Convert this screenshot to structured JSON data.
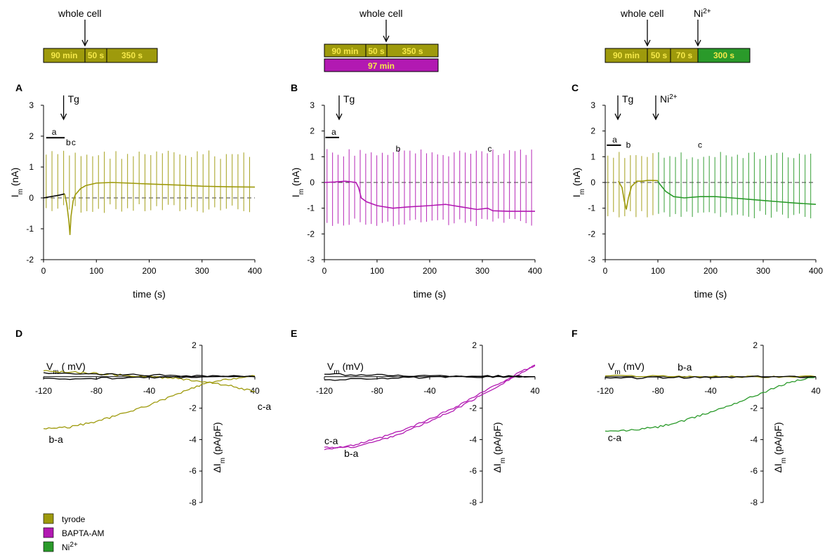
{
  "colors": {
    "tyrode": "#9e9a0c",
    "bapta": "#b219b2",
    "ni": "#2a9a2a",
    "bar_text": "#f5e84a",
    "black": "#000000"
  },
  "legend": [
    {
      "label": "tyrode",
      "color": "#9e9a0c"
    },
    {
      "label": "BAPTA-AM",
      "color": "#b219b2"
    },
    {
      "label": "Ni",
      "sup": "2+",
      "color": "#2a9a2a"
    }
  ],
  "protocols": [
    {
      "whole_cell": "whole cell",
      "segments": [
        {
          "label": "90 min",
          "color": "tyrode"
        },
        {
          "label": "50 s",
          "color": "tyrode"
        },
        {
          "label": "350 s",
          "color": "tyrode"
        }
      ],
      "extra_bar": null,
      "ni_label": null
    },
    {
      "whole_cell": "whole cell",
      "segments": [
        {
          "label": "90 min",
          "color": "tyrode"
        },
        {
          "label": "50 s",
          "color": "tyrode"
        },
        {
          "label": "350 s",
          "color": "tyrode"
        }
      ],
      "extra_bar": {
        "label": "97 min",
        "color": "bapta"
      },
      "ni_label": null
    },
    {
      "whole_cell": "whole cell",
      "segments": [
        {
          "label": "90 min",
          "color": "tyrode"
        },
        {
          "label": "50 s",
          "color": "tyrode"
        },
        {
          "label": "70 s",
          "color": "tyrode"
        },
        {
          "label": "300 s",
          "color": "ni"
        }
      ],
      "extra_bar": null,
      "ni_label": {
        "base": "Ni",
        "sup": "2+"
      }
    }
  ],
  "chart_data": [
    {
      "panel": "A",
      "type": "line",
      "xlabel": "time (s)",
      "ylabel": "I",
      "ylabel_sub": "m",
      "ylabel_unit": "(nA)",
      "xlim": [
        0,
        400
      ],
      "ylim": [
        -2,
        3
      ],
      "xticks": [
        0,
        100,
        200,
        300,
        400
      ],
      "yticks": [
        -2,
        -1,
        0,
        1,
        2,
        3
      ],
      "arrows": [
        {
          "label": "Tg",
          "x": 38
        }
      ],
      "segment_labels": [
        {
          "label": "a",
          "x": 20,
          "y": 2.05
        },
        {
          "label": "b",
          "x": 47,
          "y": 1.7
        },
        {
          "label": "c",
          "x": 57,
          "y": 1.7
        }
      ],
      "bar_a": {
        "x": [
          5,
          40
        ],
        "y": 1.95
      },
      "series": [
        {
          "color": "black",
          "x": [
            0,
            10,
            20,
            30,
            40
          ],
          "y": [
            0.0,
            0.03,
            0.06,
            0.09,
            0.13
          ]
        },
        {
          "color": "tyrode",
          "x": [
            40,
            44,
            48,
            50,
            52,
            56,
            60,
            70,
            80,
            100,
            130,
            160,
            200,
            250,
            300,
            350,
            400
          ],
          "y": [
            0.13,
            -0.2,
            -0.75,
            -1.2,
            -0.6,
            -0.1,
            0.1,
            0.3,
            0.4,
            0.48,
            0.5,
            0.48,
            0.45,
            0.42,
            0.38,
            0.36,
            0.35
          ]
        }
      ],
      "spikes": {
        "start": 5,
        "step": 11,
        "end": 398,
        "top": 1.55,
        "bottom": -0.5
      }
    },
    {
      "panel": "B",
      "type": "line",
      "xlabel": "time (s)",
      "ylabel": "I",
      "ylabel_sub": "m",
      "ylabel_unit": "(nA)",
      "xlim": [
        0,
        400
      ],
      "ylim": [
        -3,
        3
      ],
      "xticks": [
        0,
        100,
        200,
        300,
        400
      ],
      "yticks": [
        -3,
        -2,
        -1,
        0,
        1,
        2,
        3
      ],
      "arrows": [
        {
          "label": "Tg",
          "x": 28
        }
      ],
      "segment_labels": [
        {
          "label": "a",
          "x": 18,
          "y": 1.85
        },
        {
          "label": "b",
          "x": 140,
          "y": 1.2
        },
        {
          "label": "c",
          "x": 314,
          "y": 1.2
        }
      ],
      "bar_a": {
        "x": [
          2,
          28
        ],
        "y": 1.75
      },
      "series": [
        {
          "color": "bapta",
          "x": [
            0,
            20,
            40,
            60,
            65,
            70,
            80,
            100,
            130,
            160,
            200,
            230,
            260,
            290,
            310,
            320,
            350,
            400
          ],
          "y": [
            0.0,
            0.02,
            0.05,
            0.0,
            -0.2,
            -0.6,
            -0.75,
            -0.9,
            -1.0,
            -0.95,
            -0.9,
            -0.85,
            -0.95,
            -1.05,
            -1.0,
            -1.1,
            -1.12,
            -1.12
          ]
        }
      ],
      "spikes": {
        "start": 5,
        "step": 10.5,
        "end": 398,
        "top": 1.3,
        "bottom": -1.7
      }
    },
    {
      "panel": "C",
      "type": "line",
      "xlabel": "time (s)",
      "ylabel": "I",
      "ylabel_sub": "m",
      "ylabel_unit": "(nA)",
      "xlim": [
        0,
        400
      ],
      "ylim": [
        -3,
        3
      ],
      "xticks": [
        0,
        100,
        200,
        300,
        400
      ],
      "yticks": [
        -3,
        -2,
        -1,
        0,
        1,
        2,
        3
      ],
      "arrows": [
        {
          "label": "Tg",
          "x": 24
        },
        {
          "label": "Ni",
          "sup": "2+",
          "x": 96
        }
      ],
      "segment_labels": [
        {
          "label": "a",
          "x": 18,
          "y": 1.55
        },
        {
          "label": "b",
          "x": 44,
          "y": 1.35
        },
        {
          "label": "c",
          "x": 180,
          "y": 1.35
        }
      ],
      "bar_a": {
        "x": [
          3,
          30
        ],
        "y": 1.45
      },
      "series": [
        {
          "color": "tyrode",
          "x": [
            25,
            32,
            36,
            40,
            44,
            50,
            60,
            70,
            80,
            90,
            100
          ],
          "y": [
            0.05,
            -0.2,
            -0.7,
            -1.05,
            -0.6,
            -0.15,
            0.05,
            0.05,
            0.08,
            0.08,
            0.07
          ]
        },
        {
          "color": "ni",
          "x": [
            100,
            105,
            115,
            130,
            150,
            180,
            210,
            240,
            270,
            300,
            330,
            360,
            400
          ],
          "y": [
            0.05,
            -0.1,
            -0.35,
            -0.55,
            -0.6,
            -0.55,
            -0.55,
            -0.6,
            -0.65,
            -0.7,
            -0.75,
            -0.8,
            -0.85
          ]
        }
      ],
      "spikes": {
        "start": 5,
        "step": 10.7,
        "end": 398,
        "top": 1.2,
        "bottom": -1.4
      }
    },
    {
      "panel": "D",
      "type": "line",
      "xlabel": "V",
      "xlabel_sub": "m",
      "xlabel_text": "( mV)",
      "ylabel": "ΔI",
      "ylabel_sub": "m",
      "ylabel_unit": "(pA/pF)",
      "xlim": [
        -120,
        40
      ],
      "ylim": [
        -8,
        2
      ],
      "xticks": [
        -120,
        -80,
        -40,
        40
      ],
      "yticks": [
        -8,
        -6,
        -4,
        -2,
        2
      ],
      "curve_labels": [
        {
          "label": "b-a",
          "x": -116,
          "y": -4.2
        },
        {
          "label": "c-a",
          "x": 42,
          "y": -2.1
        }
      ],
      "series": [
        {
          "color": "tyrode",
          "name": "b-a",
          "x": [
            -120,
            -100,
            -80,
            -60,
            -40,
            -20,
            0,
            20,
            40
          ],
          "y": [
            -3.3,
            -3.2,
            -2.85,
            -2.35,
            -1.8,
            -1.15,
            -0.5,
            -0.15,
            0.05
          ]
        },
        {
          "color": "tyrode",
          "name": "c-a",
          "x": [
            -120,
            -100,
            -80,
            -60,
            -40,
            -20,
            0,
            20,
            40
          ],
          "y": [
            0.35,
            0.3,
            0.2,
            0.1,
            0.0,
            -0.1,
            -0.3,
            -0.55,
            -0.95
          ]
        },
        {
          "color": "black",
          "x": [
            -120,
            -80,
            -40,
            0,
            40
          ],
          "y": [
            0.2,
            0.15,
            0.1,
            0.05,
            0.0
          ]
        },
        {
          "color": "black",
          "x": [
            -120,
            -80,
            -40,
            0,
            40
          ],
          "y": [
            -0.15,
            -0.1,
            -0.05,
            0.0,
            0.0
          ]
        }
      ]
    },
    {
      "panel": "E",
      "type": "line",
      "xlabel": "V",
      "xlabel_sub": "m",
      "xlabel_text": "(mV)",
      "ylabel": "ΔI",
      "ylabel_sub": "m",
      "ylabel_unit": "(pA/pF)",
      "xlim": [
        -120,
        40
      ],
      "ylim": [
        -8,
        2
      ],
      "xticks": [
        -120,
        -80,
        -40,
        40
      ],
      "yticks": [
        -8,
        -6,
        -4,
        -2,
        2
      ],
      "curve_labels": [
        {
          "label": "c-a",
          "x": -120,
          "y": -4.3
        },
        {
          "label": "b-a",
          "x": -105,
          "y": -5.1
        }
      ],
      "series": [
        {
          "color": "bapta",
          "name": "c-a",
          "x": [
            -120,
            -100,
            -80,
            -60,
            -40,
            -20,
            0,
            20,
            40
          ],
          "y": [
            -4.6,
            -4.4,
            -3.95,
            -3.4,
            -2.7,
            -1.9,
            -1.0,
            -0.1,
            0.75
          ]
        },
        {
          "color": "bapta",
          "name": "b-a",
          "x": [
            -120,
            -100,
            -80,
            -60,
            -40,
            -20,
            0,
            20,
            40
          ],
          "y": [
            -4.5,
            -4.5,
            -4.1,
            -3.55,
            -2.85,
            -2.05,
            -1.15,
            -0.2,
            0.7
          ]
        },
        {
          "color": "black",
          "x": [
            -120,
            -80,
            -40,
            0,
            40
          ],
          "y": [
            0.15,
            0.1,
            0.05,
            0.05,
            0.0
          ]
        },
        {
          "color": "black",
          "x": [
            -120,
            -80,
            -40,
            0,
            40
          ],
          "y": [
            -0.2,
            -0.1,
            -0.05,
            0.0,
            0.0
          ]
        }
      ]
    },
    {
      "panel": "F",
      "type": "line",
      "xlabel": "V",
      "xlabel_sub": "m",
      "xlabel_text": "(mV)",
      "ylabel": "ΔI",
      "ylabel_sub": "m",
      "ylabel_unit": "(pA/pF)",
      "xlim": [
        -120,
        40
      ],
      "ylim": [
        -8,
        2
      ],
      "xticks": [
        -120,
        -80,
        -40,
        40
      ],
      "yticks": [
        -8,
        -6,
        -4,
        -2,
        2
      ],
      "curve_labels": [
        {
          "label": "b-a",
          "x": -65,
          "y": 0.4
        },
        {
          "label": "c-a",
          "x": -118,
          "y": -4.1
        }
      ],
      "series": [
        {
          "color": "ni",
          "name": "c-a",
          "x": [
            -120,
            -100,
            -80,
            -60,
            -40,
            -20,
            0,
            20,
            40
          ],
          "y": [
            -3.5,
            -3.4,
            -3.2,
            -2.8,
            -2.25,
            -1.65,
            -1.0,
            -0.35,
            0.0
          ]
        },
        {
          "color": "tyrode",
          "name": "b-a",
          "x": [
            -120,
            -80,
            -40,
            0,
            40
          ],
          "y": [
            0.05,
            0.05,
            0.0,
            0.0,
            0.0
          ]
        },
        {
          "color": "black",
          "x": [
            -120,
            -80,
            -40,
            0,
            40
          ],
          "y": [
            -0.1,
            -0.05,
            -0.05,
            0.0,
            0.0
          ]
        }
      ]
    }
  ]
}
